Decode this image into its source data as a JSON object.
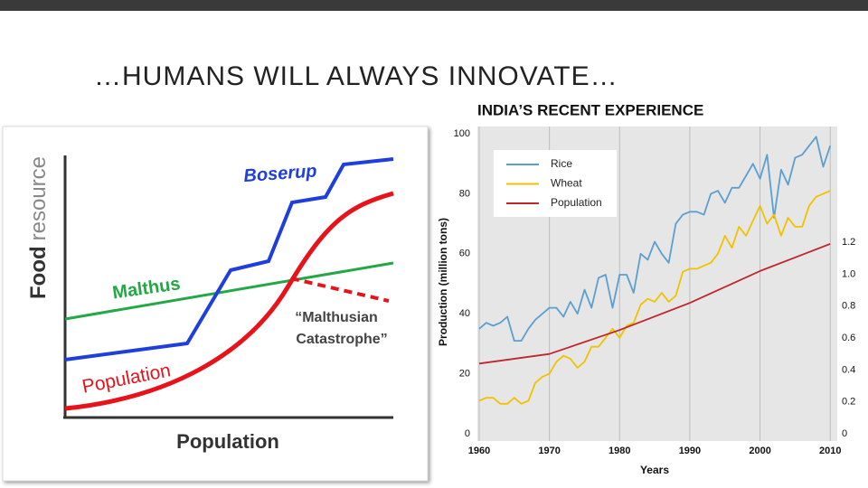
{
  "slide_title": "…HUMANS WILL ALWAYS INNOVATE…",
  "diagram": {
    "y_label_bold": "Food",
    "y_label_light": "resource",
    "x_label": "Population",
    "boserup": "Boserup",
    "malthus": "Malthus",
    "population": "Population",
    "catastrophe_line1": "“Malthusian",
    "catastrophe_line2": "Catastrophe”"
  },
  "chart_data": {
    "type": "line",
    "title": "INDIA’S RECENT EXPERIENCE",
    "x_label": "Years",
    "y_label": "Production (million tons)",
    "x": [
      1960,
      1961,
      1962,
      1963,
      1964,
      1965,
      1966,
      1967,
      1968,
      1969,
      1970,
      1971,
      1972,
      1973,
      1974,
      1975,
      1976,
      1977,
      1978,
      1979,
      1980,
      1981,
      1982,
      1983,
      1984,
      1985,
      1986,
      1987,
      1988,
      1989,
      1990,
      1991,
      1992,
      1993,
      1994,
      1995,
      1996,
      1997,
      1998,
      1999,
      2000,
      2001,
      2002,
      2003,
      2004,
      2005,
      2006,
      2007,
      2008,
      2009,
      2010
    ],
    "series": [
      {
        "name": "Rice",
        "color": "#5b9fd1",
        "values": [
          35,
          37,
          36,
          37,
          39,
          31,
          31,
          35,
          38,
          40,
          42,
          42,
          39,
          44,
          40,
          48,
          42,
          52,
          53,
          42,
          53,
          53,
          47,
          60,
          58,
          64,
          60,
          57,
          70,
          73,
          74,
          74,
          73,
          80,
          81,
          77,
          82,
          82,
          86,
          90,
          85,
          93,
          72,
          88,
          83,
          92,
          93,
          96,
          99,
          89,
          96
        ]
      },
      {
        "name": "Wheat",
        "color": "#f2c200",
        "values": [
          11,
          12,
          12,
          10,
          10,
          12,
          10,
          11,
          17,
          19,
          20,
          24,
          26,
          25,
          22,
          24,
          29,
          29,
          32,
          35,
          32,
          36,
          37,
          43,
          45,
          44,
          47,
          44,
          46,
          54,
          55,
          55,
          56,
          57,
          60,
          66,
          62,
          69,
          66,
          71,
          76,
          70,
          73,
          66,
          72,
          69,
          69,
          76,
          79,
          80,
          81
        ]
      },
      {
        "name": "Population",
        "color": "#c0262c",
        "axis": "y2",
        "x": [
          1960,
          1970,
          1980,
          1990,
          2000,
          2010
        ],
        "values": [
          0.44,
          0.5,
          0.65,
          0.82,
          1.02,
          1.19
        ]
      }
    ],
    "xlim": [
      1960,
      2011
    ],
    "xticks": [
      1960,
      1970,
      1980,
      1990,
      2000,
      2010
    ],
    "ylim": [
      0,
      100
    ],
    "yticks": [
      0,
      20,
      40,
      60,
      80,
      100
    ],
    "y2lim": [
      0,
      1.88
    ],
    "y2ticks": [
      0,
      0.2,
      0.4,
      0.6,
      0.8,
      {
        "value": 1,
        "label": "1.0"
      },
      1.2
    ],
    "grid": "x",
    "legend": "top-left"
  }
}
